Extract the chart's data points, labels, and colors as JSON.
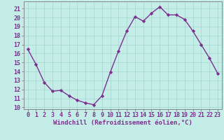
{
  "x": [
    0,
    1,
    2,
    3,
    4,
    5,
    6,
    7,
    8,
    9,
    10,
    11,
    12,
    13,
    14,
    15,
    16,
    17,
    18,
    19,
    20,
    21,
    22,
    23
  ],
  "y": [
    16.5,
    14.8,
    12.8,
    11.8,
    11.9,
    11.3,
    10.8,
    10.5,
    10.3,
    11.3,
    13.9,
    16.3,
    18.5,
    20.1,
    19.6,
    20.5,
    21.2,
    20.3,
    20.3,
    19.8,
    18.5,
    17.0,
    15.5,
    13.8
  ],
  "line_color": "#7B2F8E",
  "marker_color": "#7B2F8E",
  "bg_color": "#C5EDE8",
  "grid_color": "#A0D5CE",
  "xlabel": "Windchill (Refroidissement éolien,°C)",
  "xlim": [
    -0.5,
    23.5
  ],
  "ylim": [
    9.8,
    21.8
  ],
  "yticks": [
    10,
    11,
    12,
    13,
    14,
    15,
    16,
    17,
    18,
    19,
    20,
    21
  ],
  "xticks": [
    0,
    1,
    2,
    3,
    4,
    5,
    6,
    7,
    8,
    9,
    10,
    11,
    12,
    13,
    14,
    15,
    16,
    17,
    18,
    19,
    20,
    21,
    22,
    23
  ],
  "xlabel_fontsize": 6.5,
  "tick_fontsize": 6,
  "label_color": "#7B2F8E",
  "axis_color": "#555555",
  "linewidth": 1.0,
  "markersize": 2.2
}
